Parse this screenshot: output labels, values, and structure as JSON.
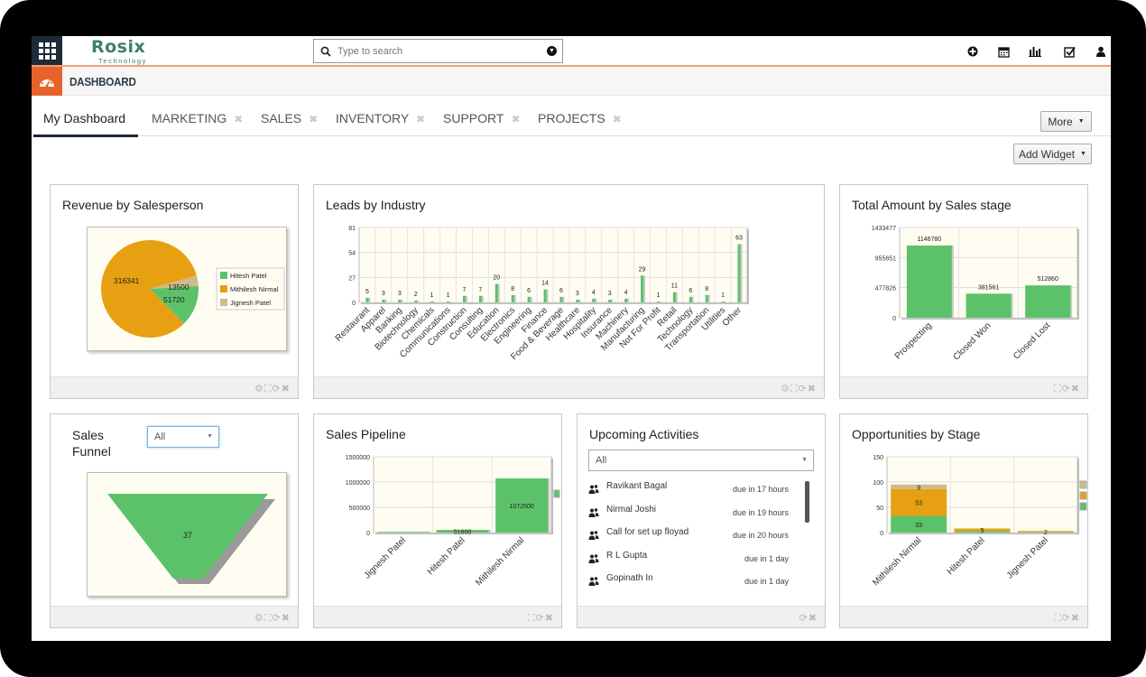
{
  "header": {
    "logo_main": "Rosix",
    "logo_sub": "Technology",
    "search_placeholder": "Type to search",
    "icons": [
      "plus-icon",
      "calendar-icon",
      "bar-chart-icon",
      "checkbox-icon",
      "user-icon"
    ]
  },
  "dashboard": {
    "title": "DASHBOARD"
  },
  "tabs": [
    {
      "label": "My Dashboard",
      "active": true
    },
    {
      "label": "MARKETING",
      "close": "✖"
    },
    {
      "label": "SALES",
      "close": "✖"
    },
    {
      "label": "INVENTORY",
      "close": "✖"
    },
    {
      "label": "SUPPORT",
      "close": "✖"
    },
    {
      "label": "PROJECTS",
      "close": "✖"
    }
  ],
  "buttons": {
    "more": "More",
    "add_widget": "Add Widget"
  },
  "widgets": {
    "revenue": {
      "title": "Revenue by Salesperson"
    },
    "leads": {
      "title": "Leads by Industry"
    },
    "total_amount": {
      "title": "Total Amount by Sales stage"
    },
    "funnel": {
      "title_line1": "Sales",
      "title_line2": "Funnel",
      "filter": "All"
    },
    "pipeline": {
      "title": "Sales Pipeline"
    },
    "activities": {
      "title": "Upcoming Activities",
      "filter": "All",
      "items": [
        {
          "who": "Ravikant Bagal",
          "due": "due in 17 hours"
        },
        {
          "who": "Nirmal Joshi",
          "due": "due in 19 hours"
        },
        {
          "who": "Call for set up floyad",
          "due": "due in 20 hours"
        },
        {
          "who": "R L Gupta",
          "due": "due in 1 day"
        },
        {
          "who": "Gopinath In",
          "due": "due in 1 day"
        }
      ]
    },
    "opportunities": {
      "title": "Opportunities by Stage"
    }
  },
  "colors": {
    "green": "#5cc26a",
    "orange": "#e6a012",
    "tan": "#cdbb8a",
    "accent": "#e8622c",
    "navy": "#1e2a38"
  },
  "chart_data": [
    {
      "type": "pie",
      "id": "revenue",
      "labels": [
        "Hitesh Patel",
        "Mithilesh Nirmal",
        "Jignesh Patel"
      ],
      "values": [
        51720,
        316341,
        13500
      ],
      "legend": "right"
    },
    {
      "type": "bar",
      "id": "leads",
      "categories": [
        "Restaurant",
        "Apparel",
        "Banking",
        "Biotechnology",
        "Chemicals",
        "Communications",
        "Construction",
        "Consulting",
        "Education",
        "Electronics",
        "Engineering",
        "Finance",
        "Food & Beverage",
        "Healthcare",
        "Hospitality",
        "Insurance",
        "Machinery",
        "Manufacturing",
        "Not For Profit",
        "Retail",
        "Technology",
        "Transportation",
        "Utilities",
        "Other"
      ],
      "values": [
        5,
        3,
        3,
        2,
        1,
        1,
        7,
        7,
        20,
        8,
        6,
        14,
        6,
        3,
        4,
        3,
        4,
        29,
        1,
        11,
        6,
        8,
        1,
        63
      ],
      "yticks": [
        0,
        27,
        54,
        81
      ],
      "ylim": [
        0,
        81
      ]
    },
    {
      "type": "bar",
      "id": "total_amount",
      "categories": [
        "Prospecting",
        "Closed Won",
        "Closed Lost"
      ],
      "values": [
        1146780,
        381561,
        512860
      ],
      "yticks": [
        0,
        477826,
        955651,
        1433477
      ],
      "ylim": [
        0,
        1433477
      ]
    },
    {
      "type": "funnel",
      "id": "funnel",
      "values": [
        37
      ]
    },
    {
      "type": "bar",
      "id": "pipeline",
      "categories": [
        "Jignesh Patel",
        "Hitesh Patel",
        "Mithilesh Nirmal"
      ],
      "values": [
        13500,
        51600,
        1072500
      ],
      "value_labels": [
        "",
        "51600",
        "1072500"
      ],
      "yticks": [
        0,
        500000,
        1000000,
        1500000
      ],
      "ylim": [
        0,
        1500000
      ]
    },
    {
      "type": "bar",
      "id": "opportunities",
      "stacked": true,
      "categories": [
        "Mithilesh Nirmal",
        "Hitesh Patel",
        "Jignesh Patel"
      ],
      "series": [
        {
          "values": [
            33,
            3,
            1
          ]
        },
        {
          "values": [
            53,
            5,
            2
          ]
        },
        {
          "values": [
            9,
            0,
            0
          ]
        }
      ],
      "value_labels": [
        [
          "33",
          "53",
          "9"
        ],
        [
          "",
          "5",
          ""
        ],
        [
          "",
          "2",
          ""
        ]
      ],
      "yticks": [
        0,
        50,
        100,
        150
      ],
      "ylim": [
        0,
        150
      ]
    }
  ]
}
